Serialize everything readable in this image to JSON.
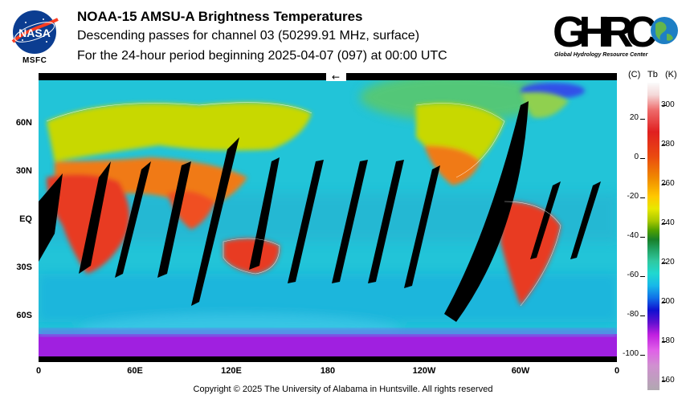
{
  "header": {
    "title": "NOAA-15 AMSU-A Brightness Temperatures",
    "subtitle": "Descending passes for channel 03 (50299.91 MHz, surface)",
    "period": "For the 24-hour period beginning 2025-04-07 (097) at 00:00 UTC"
  },
  "logos": {
    "nasa_text": "NASA",
    "nasa_label": "MSFC",
    "ghrc_text": "GHRC",
    "ghrc_subtitle": "Global Hydrology Resource Center"
  },
  "map": {
    "lat_labels": [
      "60N",
      "30N",
      "EQ",
      "30S",
      "60S"
    ],
    "lon_labels": [
      "0",
      "60E",
      "120E",
      "180",
      "120W",
      "60W",
      "0"
    ],
    "arrow": "←"
  },
  "colorbar": {
    "header_c": "(C)",
    "header_tb": "Tb",
    "header_k": "(K)",
    "celsius_ticks": [
      "20",
      "0",
      "-20",
      "-40",
      "-60",
      "-80",
      "-100"
    ],
    "kelvin_ticks": [
      "300",
      "280",
      "260",
      "240",
      "220",
      "200",
      "180",
      "160"
    ]
  },
  "footer": {
    "copyright": "Copyright © 2025 The University of Alabama in Huntsville.  All rights reserved"
  }
}
